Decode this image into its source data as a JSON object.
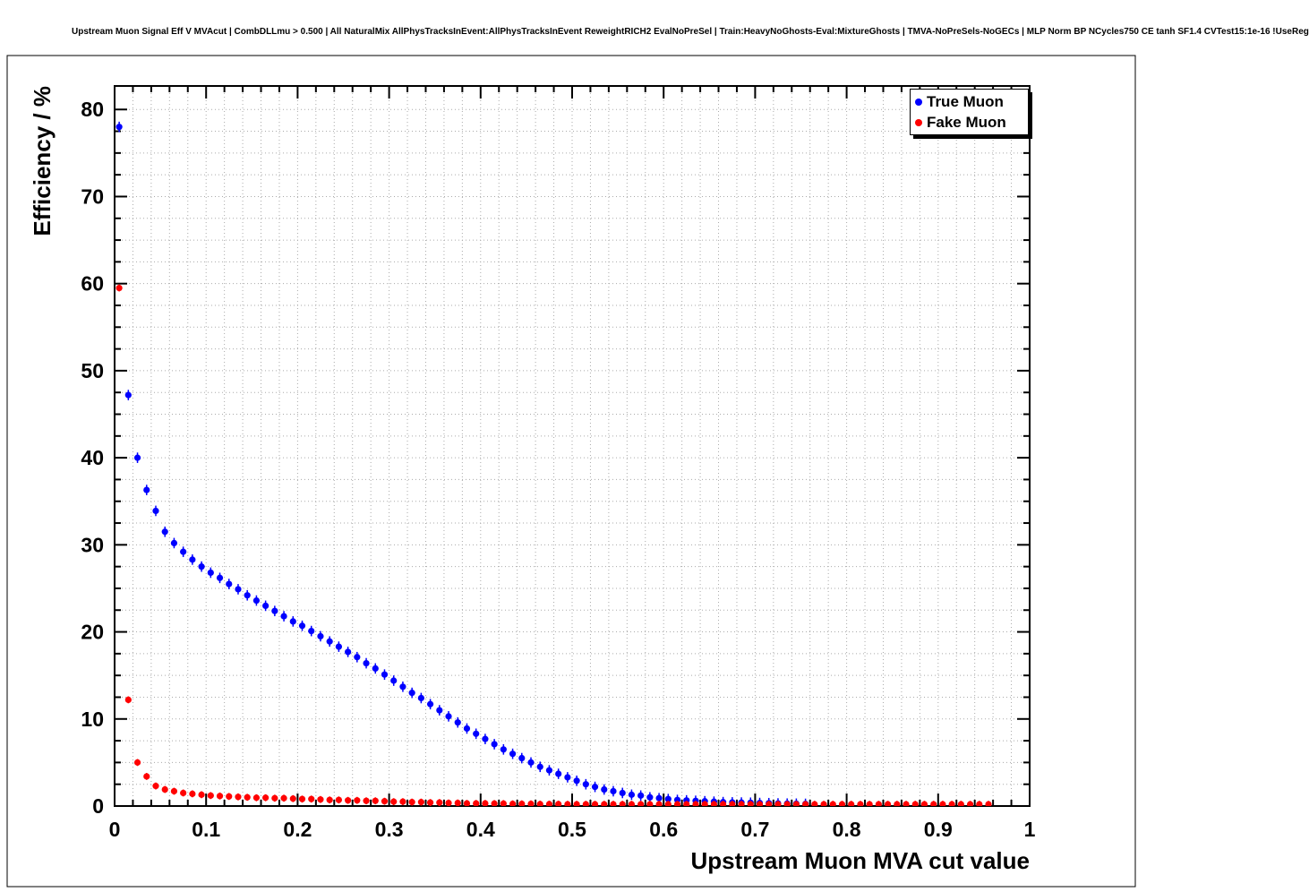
{
  "chart_data": {
    "type": "scatter",
    "title": "Upstream Muon Signal Eff V MVAcut | CombDLLmu > 0.500 | All NaturalMix AllPhysTracksInEvent:AllPhysTracksInEvent ReweightRICH2 EvalNoPreSel | Train:HeavyNoGhosts-Eval:MixtureGhosts | TMVA-NoPreSels-NoGECs | MLP Norm BP NCycles750 CE tanh SF1.4 CVTest15:1e-16 !UseReg",
    "xlabel": "Upstream Muon MVA cut value",
    "ylabel": "Efficiency / %",
    "xlim": [
      0,
      1
    ],
    "ylim": [
      0,
      82.7
    ],
    "x_ticks": [
      0,
      0.1,
      0.2,
      0.3,
      0.4,
      0.5,
      0.6,
      0.7,
      0.8,
      0.9,
      1
    ],
    "x_tick_labels": [
      "0",
      "0.1",
      "0.2",
      "0.3",
      "0.4",
      "0.5",
      "0.6",
      "0.7",
      "0.8",
      "0.9",
      "1"
    ],
    "y_ticks": [
      0,
      10,
      20,
      30,
      40,
      50,
      60,
      70,
      80
    ],
    "y_tick_labels": [
      "0",
      "10",
      "20",
      "30",
      "40",
      "50",
      "60",
      "70",
      "80"
    ],
    "x_minor_step": 0.02,
    "y_minor_step": 2.5,
    "grid": "dotted",
    "legend_position": "top-right",
    "marker": "filled-circle",
    "series": [
      {
        "name": "True Muon",
        "color": "#0000ff",
        "yerr_approx": 0.6,
        "x": [
          0.005,
          0.015,
          0.025,
          0.035,
          0.045,
          0.055,
          0.065,
          0.075,
          0.085,
          0.095,
          0.105,
          0.115,
          0.125,
          0.135,
          0.145,
          0.155,
          0.165,
          0.175,
          0.185,
          0.195,
          0.205,
          0.215,
          0.225,
          0.235,
          0.245,
          0.255,
          0.265,
          0.275,
          0.285,
          0.295,
          0.305,
          0.315,
          0.325,
          0.335,
          0.345,
          0.355,
          0.365,
          0.375,
          0.385,
          0.395,
          0.405,
          0.415,
          0.425,
          0.435,
          0.445,
          0.455,
          0.465,
          0.475,
          0.485,
          0.495,
          0.505,
          0.515,
          0.525,
          0.535,
          0.545,
          0.555,
          0.565,
          0.575,
          0.585,
          0.595,
          0.605,
          0.615,
          0.625,
          0.635,
          0.645,
          0.655,
          0.665,
          0.675,
          0.685,
          0.695,
          0.705,
          0.715,
          0.725,
          0.735,
          0.745,
          0.755
        ],
        "y": [
          78.0,
          47.2,
          40.0,
          36.3,
          33.9,
          31.5,
          30.2,
          29.2,
          28.3,
          27.5,
          26.8,
          26.2,
          25.5,
          24.9,
          24.2,
          23.6,
          23.0,
          22.4,
          21.8,
          21.2,
          20.7,
          20.1,
          19.5,
          18.9,
          18.3,
          17.7,
          17.1,
          16.4,
          15.8,
          15.1,
          14.4,
          13.7,
          13.0,
          12.4,
          11.7,
          11.0,
          10.3,
          9.6,
          8.9,
          8.3,
          7.7,
          7.1,
          6.5,
          6.0,
          5.5,
          5.0,
          4.5,
          4.1,
          3.7,
          3.3,
          2.9,
          2.5,
          2.2,
          1.9,
          1.7,
          1.5,
          1.3,
          1.2,
          1.0,
          0.9,
          0.8,
          0.7,
          0.65,
          0.6,
          0.55,
          0.5,
          0.45,
          0.42,
          0.4,
          0.38,
          0.35,
          0.33,
          0.3,
          0.28,
          0.27,
          0.25
        ]
      },
      {
        "name": "Fake Muon",
        "color": "#ff0000",
        "yerr_approx": 0.4,
        "x": [
          0.005,
          0.015,
          0.025,
          0.035,
          0.045,
          0.055,
          0.065,
          0.075,
          0.085,
          0.095,
          0.105,
          0.115,
          0.125,
          0.135,
          0.145,
          0.155,
          0.165,
          0.175,
          0.185,
          0.195,
          0.205,
          0.215,
          0.225,
          0.235,
          0.245,
          0.255,
          0.265,
          0.275,
          0.285,
          0.295,
          0.305,
          0.315,
          0.325,
          0.335,
          0.345,
          0.355,
          0.365,
          0.375,
          0.385,
          0.395,
          0.405,
          0.415,
          0.425,
          0.435,
          0.445,
          0.455,
          0.465,
          0.475,
          0.485,
          0.495,
          0.505,
          0.515,
          0.525,
          0.535,
          0.545,
          0.555,
          0.565,
          0.575,
          0.585,
          0.595,
          0.605,
          0.615,
          0.625,
          0.635,
          0.645,
          0.655,
          0.665,
          0.675,
          0.685,
          0.695,
          0.705,
          0.715,
          0.725,
          0.735,
          0.745,
          0.755,
          0.765,
          0.775,
          0.785,
          0.795,
          0.805,
          0.815,
          0.825,
          0.835,
          0.845,
          0.855,
          0.865,
          0.875,
          0.885,
          0.895,
          0.905,
          0.915,
          0.925,
          0.935,
          0.945,
          0.955
        ],
        "y": [
          59.5,
          12.2,
          5.0,
          3.4,
          2.3,
          1.9,
          1.7,
          1.5,
          1.4,
          1.3,
          1.2,
          1.15,
          1.1,
          1.05,
          1.0,
          0.95,
          0.95,
          0.9,
          0.9,
          0.85,
          0.8,
          0.8,
          0.75,
          0.7,
          0.7,
          0.65,
          0.65,
          0.6,
          0.6,
          0.55,
          0.5,
          0.5,
          0.45,
          0.45,
          0.4,
          0.4,
          0.35,
          0.35,
          0.3,
          0.3,
          0.3,
          0.28,
          0.28,
          0.25,
          0.25,
          0.25,
          0.22,
          0.22,
          0.22,
          0.2,
          0.2,
          0.2,
          0.2,
          0.2,
          0.2,
          0.2,
          0.2,
          0.2,
          0.2,
          0.2,
          0.2,
          0.2,
          0.2,
          0.2,
          0.2,
          0.2,
          0.2,
          0.2,
          0.2,
          0.2,
          0.2,
          0.2,
          0.2,
          0.2,
          0.2,
          0.2,
          0.2,
          0.2,
          0.2,
          0.2,
          0.2,
          0.2,
          0.2,
          0.2,
          0.2,
          0.2,
          0.2,
          0.2,
          0.2,
          0.2,
          0.2,
          0.2,
          0.2,
          0.2,
          0.2,
          0.2
        ]
      }
    ]
  }
}
